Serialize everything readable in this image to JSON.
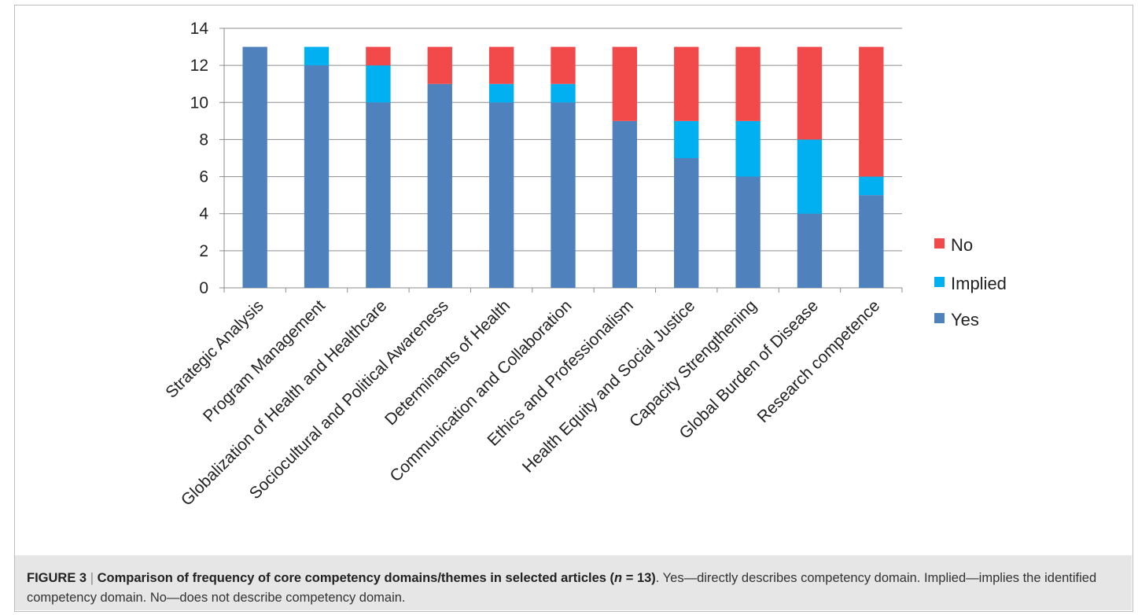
{
  "chart_data": {
    "type": "bar",
    "stacked": true,
    "categories": [
      "Strategic Analysis",
      "Program Management",
      "Globalization of Health and Healthcare",
      "Sociocultural and Political Awareness",
      "Determinants of Health",
      "Communication and Collaboration",
      "Ethics and Professionalism",
      "Health Equity and Social Justice",
      "Capacity Strengthening",
      "Global Burden of Disease",
      "Research competence"
    ],
    "series": [
      {
        "name": "Yes",
        "color": "#4f81bd",
        "values": [
          13,
          12,
          10,
          11,
          10,
          10,
          9,
          7,
          6,
          4,
          5
        ]
      },
      {
        "name": "Implied",
        "color": "#00b0f0",
        "values": [
          0,
          1,
          2,
          0,
          1,
          1,
          0,
          2,
          3,
          4,
          1
        ]
      },
      {
        "name": "No",
        "color": "#f24a4a",
        "values": [
          0,
          0,
          1,
          2,
          2,
          2,
          4,
          4,
          4,
          5,
          7
        ]
      }
    ],
    "ylim": [
      0,
      14
    ],
    "yticks": [
      "0",
      "2",
      "4",
      "6",
      "8",
      "10",
      "12",
      "14"
    ],
    "grid": true,
    "legend_position": "right",
    "legend_order": [
      "No",
      "Implied",
      "Yes"
    ]
  },
  "caption": {
    "title": "FIGURE 3",
    "separator": "|",
    "bold_text": "Comparison of frequency of core competency domains/themes in selected articles (",
    "n_label": "n",
    "bold_text_end": " = 13)",
    "rest": ". Yes—directly describes competency domain. Implied—implies the identified competency domain. No—does not describe competency domain."
  }
}
